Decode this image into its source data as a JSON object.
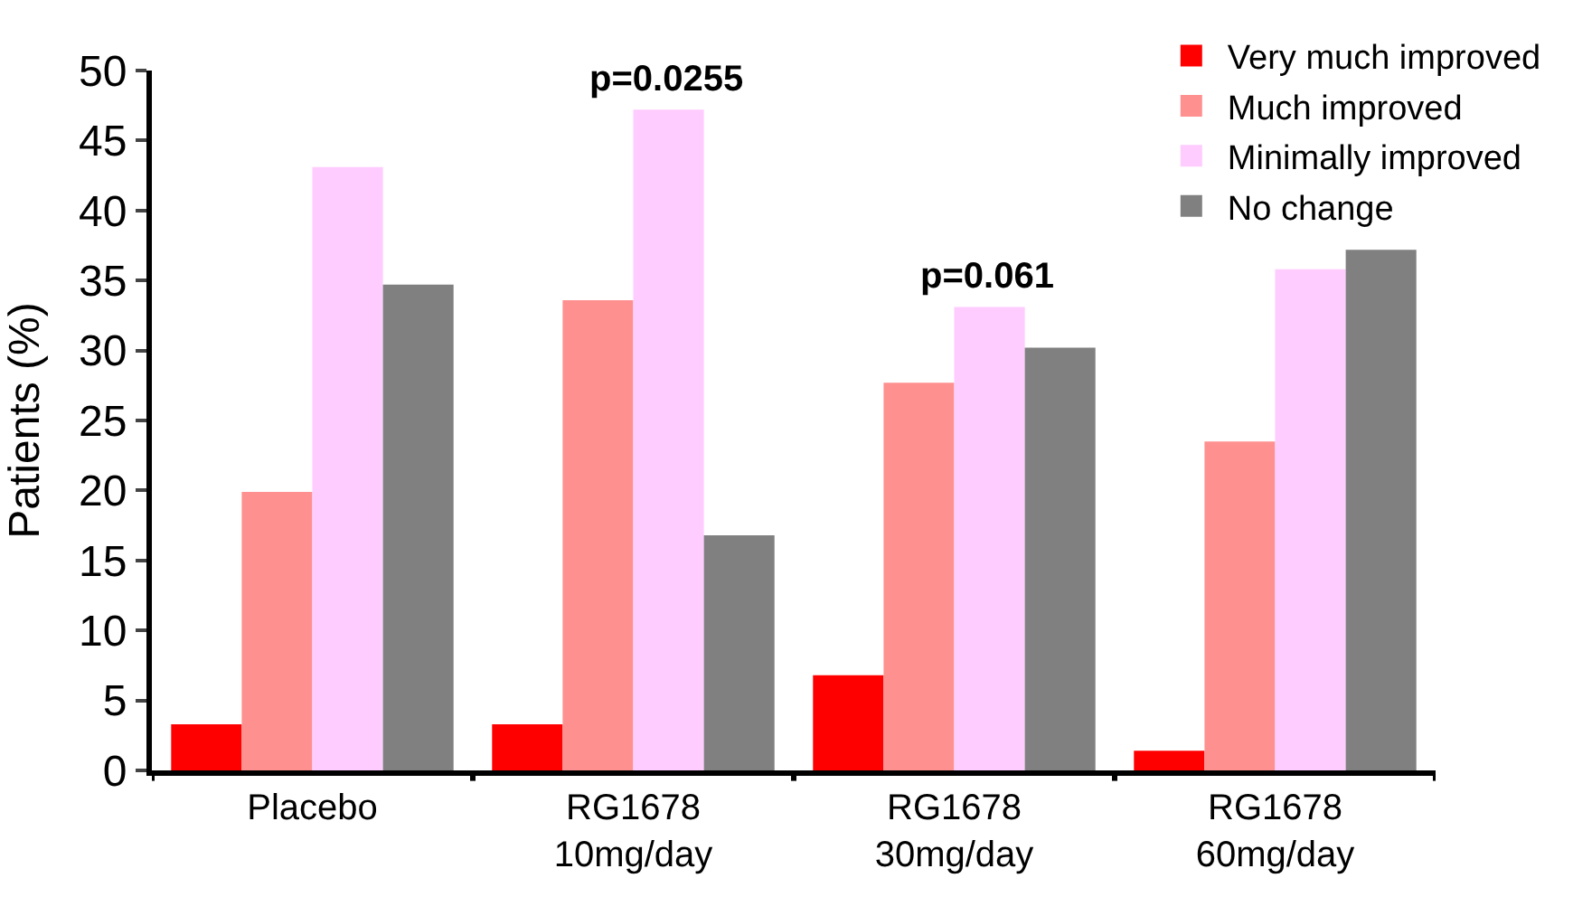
{
  "chart_data": {
    "type": "bar",
    "ylabel": "Patients (%)",
    "categories": [
      "Placebo",
      "RG1678\n10mg/day",
      "RG1678\n30mg/day",
      "RG1678\n60mg/day"
    ],
    "series": [
      {
        "name": "Very much improved",
        "color": "#ff0000",
        "values": [
          3.3,
          3.3,
          6.8,
          1.4
        ]
      },
      {
        "name": "Much improved",
        "color": "#ff9090",
        "values": [
          19.9,
          33.6,
          27.7,
          23.5
        ]
      },
      {
        "name": "Minimally improved",
        "color": "#ffccff",
        "values": [
          43.1,
          47.2,
          33.1,
          35.8
        ]
      },
      {
        "name": "No change",
        "color": "#808080",
        "values": [
          34.7,
          16.8,
          30.2,
          37.2
        ]
      }
    ],
    "ylim": [
      0,
      50
    ],
    "yticks": [
      0,
      5,
      10,
      15,
      20,
      25,
      30,
      35,
      40,
      45,
      50
    ],
    "annotations": [
      {
        "text": "p=0.0255",
        "x": "RG1678\n10mg/day",
        "y": 47.2
      },
      {
        "text": "p=0.061",
        "x": "RG1678\n30mg/day",
        "y": 33.1
      }
    ],
    "legend": "top right"
  }
}
